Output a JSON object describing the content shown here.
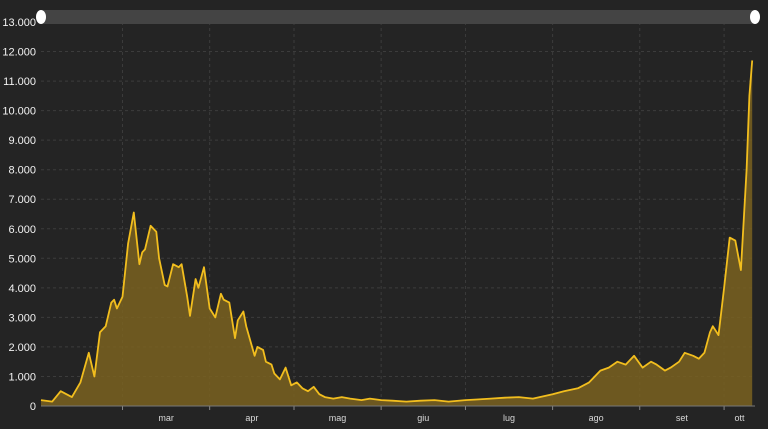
{
  "colors": {
    "background": "#242424",
    "line": "#f2be1e",
    "area": "#7a6220",
    "scrollbar_track": "#444444",
    "scrollbar_handle": "#ffffff",
    "grid": "#3c3c3c"
  },
  "chart_data": {
    "type": "area",
    "title": "",
    "xlabel": "",
    "ylabel": "",
    "ylim": [
      0,
      13000
    ],
    "yticks": [
      0,
      1000,
      2000,
      3000,
      4000,
      5000,
      6000,
      7000,
      8000,
      9000,
      10000,
      11000,
      12000,
      13000
    ],
    "ytick_labels": [
      "0",
      "1.000",
      "2.000",
      "3.000",
      "4.000",
      "5.000",
      "6.000",
      "7.000",
      "8.000",
      "9.000",
      "10.000",
      "11.000",
      "12.000",
      "13.000"
    ],
    "xlim": [
      "2020-02-01",
      "2020-10-12"
    ],
    "xticks": [
      "2020-03-01",
      "2020-04-01",
      "2020-05-01",
      "2020-06-01",
      "2020-07-01",
      "2020-08-01",
      "2020-09-01",
      "2020-10-01"
    ],
    "xtick_labels": [
      "mar",
      "apr",
      "mag",
      "giu",
      "lug",
      "ago",
      "set",
      "ott"
    ],
    "grid": true,
    "legend": "none",
    "series": [
      {
        "x": [
          "2020-02-01",
          "2020-02-05",
          "2020-02-08",
          "2020-02-12",
          "2020-02-15",
          "2020-02-18",
          "2020-02-20",
          "2020-02-22",
          "2020-02-24",
          "2020-02-26",
          "2020-02-27",
          "2020-02-28",
          "2020-03-01",
          "2020-03-03",
          "2020-03-05",
          "2020-03-07",
          "2020-03-08",
          "2020-03-09",
          "2020-03-11",
          "2020-03-13",
          "2020-03-14",
          "2020-03-16",
          "2020-03-17",
          "2020-03-19",
          "2020-03-21",
          "2020-03-22",
          "2020-03-24",
          "2020-03-25",
          "2020-03-27",
          "2020-03-28",
          "2020-03-30",
          "2020-04-01",
          "2020-04-03",
          "2020-04-05",
          "2020-04-06",
          "2020-04-08",
          "2020-04-10",
          "2020-04-11",
          "2020-04-13",
          "2020-04-14",
          "2020-04-17",
          "2020-04-18",
          "2020-04-20",
          "2020-04-21",
          "2020-04-23",
          "2020-04-24",
          "2020-04-26",
          "2020-04-28",
          "2020-04-30",
          "2020-05-02",
          "2020-05-04",
          "2020-05-06",
          "2020-05-08",
          "2020-05-10",
          "2020-05-12",
          "2020-05-15",
          "2020-05-18",
          "2020-05-21",
          "2020-05-25",
          "2020-05-28",
          "2020-06-01",
          "2020-06-05",
          "2020-06-10",
          "2020-06-15",
          "2020-06-20",
          "2020-06-25",
          "2020-07-01",
          "2020-07-05",
          "2020-07-10",
          "2020-07-15",
          "2020-07-20",
          "2020-07-25",
          "2020-08-01",
          "2020-08-05",
          "2020-08-10",
          "2020-08-14",
          "2020-08-18",
          "2020-08-21",
          "2020-08-24",
          "2020-08-27",
          "2020-08-30",
          "2020-09-02",
          "2020-09-05",
          "2020-09-07",
          "2020-09-10",
          "2020-09-12",
          "2020-09-15",
          "2020-09-17",
          "2020-09-20",
          "2020-09-22",
          "2020-09-24",
          "2020-09-26",
          "2020-09-27",
          "2020-09-29",
          "2020-10-01",
          "2020-10-03",
          "2020-10-05",
          "2020-10-07",
          "2020-10-09",
          "2020-10-10",
          "2020-10-11"
        ],
        "y": [
          200,
          150,
          500,
          300,
          800,
          1800,
          1000,
          2500,
          2700,
          3500,
          3600,
          3300,
          3700,
          5500,
          6550,
          4800,
          5200,
          5300,
          6100,
          5900,
          5000,
          4100,
          4050,
          4800,
          4700,
          4800,
          3700,
          3050,
          4300,
          4000,
          4700,
          3300,
          3000,
          3800,
          3600,
          3500,
          2300,
          2900,
          3200,
          2700,
          1700,
          2000,
          1900,
          1500,
          1400,
          1100,
          900,
          1300,
          700,
          800,
          600,
          500,
          650,
          400,
          300,
          250,
          300,
          250,
          200,
          250,
          200,
          180,
          150,
          180,
          200,
          150,
          200,
          220,
          250,
          280,
          300,
          250,
          400,
          500,
          600,
          800,
          1200,
          1300,
          1500,
          1400,
          1700,
          1300,
          1500,
          1400,
          1200,
          1300,
          1500,
          1800,
          1700,
          1600,
          1800,
          2500,
          2700,
          2400,
          4000,
          5700,
          5600,
          4600,
          8000,
          10500,
          11700
        ]
      }
    ]
  }
}
